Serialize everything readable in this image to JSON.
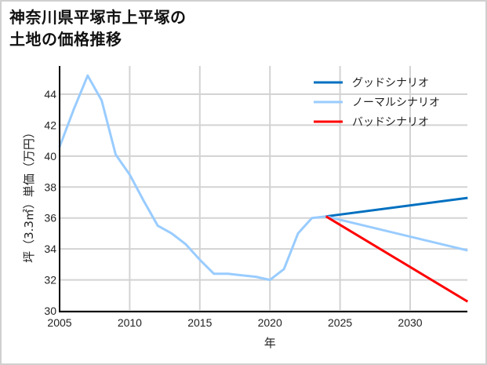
{
  "title": {
    "line1": "神奈川県平塚市上平塚の",
    "line2": "土地の価格推移"
  },
  "chart_data": {
    "type": "line",
    "title": "神奈川県平塚市上平塚の土地の価格推移",
    "xlabel": "年",
    "ylabel": "坪（3.3㎡）単価（万円）",
    "xlim": [
      2005,
      2034.1
    ],
    "ylim": [
      30,
      46
    ],
    "x_ticks": [
      2005,
      2010,
      2015,
      2020,
      2025,
      2030
    ],
    "y_ticks": [
      30,
      32,
      34,
      36,
      38,
      40,
      42,
      44
    ],
    "grid": true,
    "legend_position": "upper right",
    "series": [
      {
        "name": "ノーマルシナリオ",
        "kind": "historical",
        "color": "#99ccff",
        "x": [
          2005,
          2006,
          2007,
          2008,
          2009,
          2010,
          2011,
          2012,
          2013,
          2014,
          2015,
          2016,
          2017,
          2018,
          2019,
          2020,
          2021,
          2022,
          2023,
          2024
        ],
        "values": [
          40.6,
          43.0,
          45.2,
          43.6,
          40.1,
          38.8,
          37.1,
          35.5,
          35.0,
          34.3,
          33.3,
          32.4,
          32.4,
          32.3,
          32.2,
          32.0,
          32.7,
          35.0,
          36.0,
          36.1
        ]
      },
      {
        "name": "グッドシナリオ",
        "kind": "forecast",
        "color": "#0070c0",
        "x": [
          2024,
          2034.1
        ],
        "values": [
          36.1,
          37.3
        ]
      },
      {
        "name": "ノーマルシナリオ",
        "kind": "forecast",
        "color": "#99ccff",
        "x": [
          2024,
          2034.1
        ],
        "values": [
          36.1,
          33.9
        ]
      },
      {
        "name": "バッドシナリオ",
        "kind": "forecast",
        "color": "#ff0000",
        "x": [
          2024,
          2034.1
        ],
        "values": [
          36.1,
          30.6
        ]
      }
    ],
    "legend": [
      {
        "label": "グッドシナリオ",
        "color": "#0070c0"
      },
      {
        "label": "ノーマルシナリオ",
        "color": "#99ccff"
      },
      {
        "label": "バッドシナリオ",
        "color": "#ff0000"
      }
    ]
  }
}
